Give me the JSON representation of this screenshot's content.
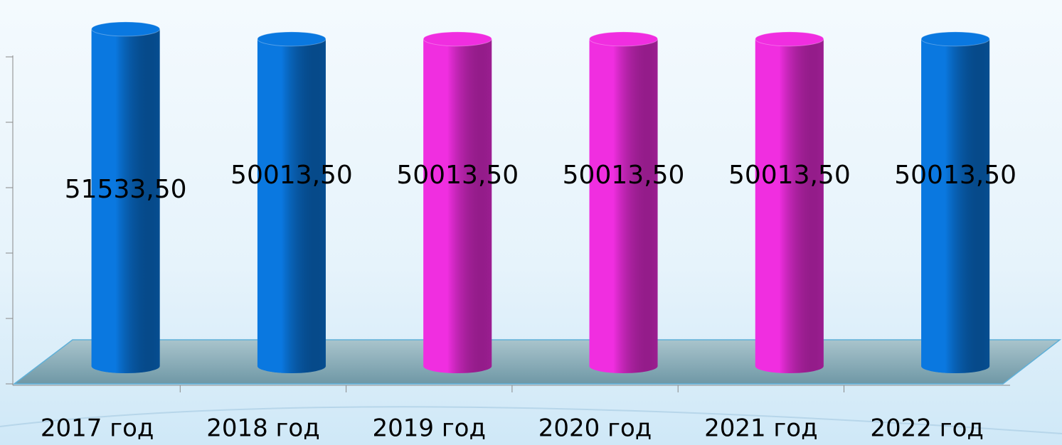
{
  "chart_data": {
    "type": "bar3d",
    "categories": [
      "2017 год",
      "2018 год",
      "2019 год",
      "2020 год",
      "2021 год",
      "2022 год"
    ],
    "values": [
      51533.5,
      50013.5,
      50013.5,
      50013.5,
      50013.5,
      50013.5
    ],
    "value_labels": [
      "51533,50",
      "50013,50",
      "50013,50",
      "50013,50",
      "50013,50",
      "50013,50"
    ],
    "colors": [
      "#0a78e0",
      "#0a78e0",
      "#f02ee0",
      "#f02ee0",
      "#f02ee0",
      "#0a78e0"
    ],
    "ylim": [
      0,
      50000
    ],
    "yticks": [
      0,
      10000,
      20000,
      30000,
      40000,
      50000
    ]
  }
}
